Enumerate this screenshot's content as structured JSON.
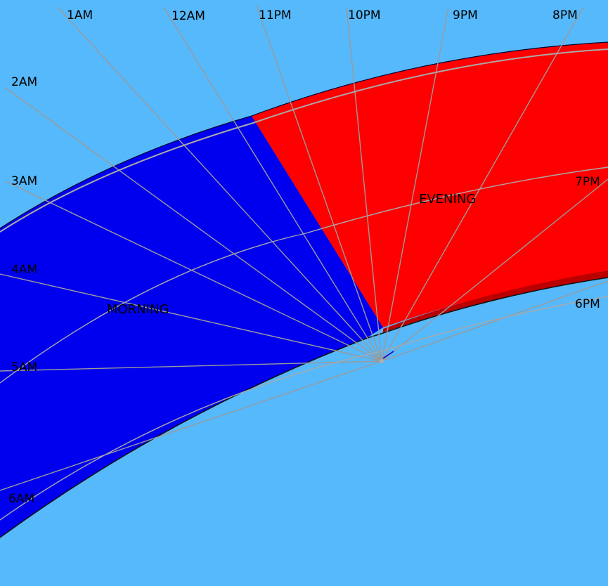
{
  "background_color": "#56b9fb",
  "regions": [
    {
      "id": "morning",
      "label": "MORNING",
      "color": "#0000ee"
    },
    {
      "id": "evening",
      "label": "EVENING",
      "color": "#ff0000"
    }
  ],
  "evening_edge_color": "#bb0000",
  "hour_labels": [
    "1AM",
    "12AM",
    "11PM",
    "10PM",
    "9PM",
    "8PM",
    "2AM",
    "3AM",
    "7PM",
    "4AM",
    "6PM",
    "5AM",
    "6AM"
  ]
}
